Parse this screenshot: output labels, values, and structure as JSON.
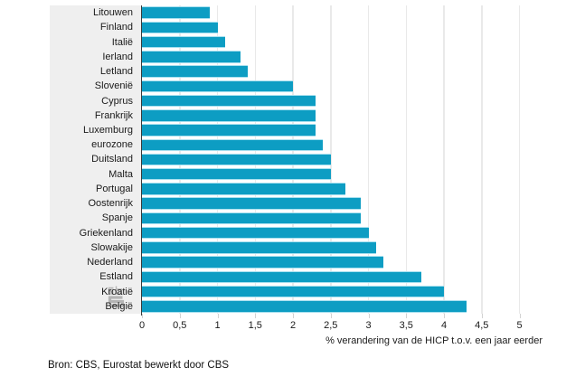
{
  "chart_data": {
    "type": "bar",
    "orientation": "horizontal",
    "title": "",
    "xlabel": "% verandering van de HICP t.o.v. een jaar eerder",
    "ylabel": "",
    "xlim": [
      0,
      5
    ],
    "grid": "vertical gridlines every 0.5, light gray",
    "legend_position": "none",
    "categories": [
      "Litouwen",
      "Finland",
      "Italië",
      "Ierland",
      "Letland",
      "Slovenië",
      "Cyprus",
      "Frankrijk",
      "Luxemburg",
      "eurozone",
      "Duitsland",
      "Malta",
      "Portugal",
      "Oostenrijk",
      "Spanje",
      "Griekenland",
      "Slowakije",
      "Nederland",
      "Estland",
      "Kroatië",
      "België"
    ],
    "values": [
      0.9,
      1.0,
      1.1,
      1.3,
      1.4,
      2.0,
      2.3,
      2.3,
      2.3,
      2.4,
      2.5,
      2.5,
      2.7,
      2.9,
      2.9,
      3.0,
      3.1,
      3.2,
      3.7,
      4.0,
      4.3
    ],
    "x_ticks": [
      0,
      0.5,
      1,
      1.5,
      2,
      2.5,
      3,
      3.5,
      4,
      4.5,
      5
    ],
    "x_tick_labels": [
      "0",
      "0,5",
      "1",
      "1,5",
      "2",
      "2,5",
      "3",
      "3,5",
      "4",
      "4,5",
      "5"
    ]
  },
  "style": {
    "bar_color": "#0d9dc3",
    "bar_edge_color": "#a8e0ef",
    "label_panel_color": "#efefef",
    "gridline_color": "#e9e9e9",
    "axis_line_color": "#3a3a3a",
    "text_color": "#1a1a1a",
    "logo_color": "#b4b4b4"
  },
  "icons": {
    "logo": "cbs-logo"
  },
  "footer": {
    "source": "Bron: CBS, Eurostat bewerkt door CBS"
  }
}
